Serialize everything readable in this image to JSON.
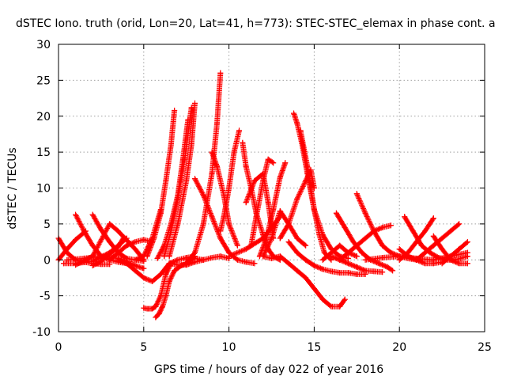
{
  "chart_data": {
    "type": "scatter",
    "title": "dSTEC Iono. truth (orid, Lon=20, Lat=41, h=773): STEC-STEC_elemax in phase cont. a",
    "xlabel": "GPS time / hours of day 022 of year 2016",
    "ylabel": "dSTEC  / TECUs",
    "xlim": [
      0,
      25
    ],
    "ylim": [
      -10,
      30
    ],
    "xticks": [
      0,
      5,
      10,
      15,
      20,
      25
    ],
    "yticks": [
      -10,
      -5,
      0,
      5,
      10,
      15,
      20,
      25,
      30
    ],
    "grid": true,
    "legend": "none",
    "marker": "plus",
    "color": "#ff0000",
    "series": [
      {
        "x": [
          0.0,
          0.5,
          1.0,
          1.5,
          2.0,
          2.5,
          3.0
        ],
        "y": [
          3.0,
          1.0,
          0.0,
          -0.3,
          -0.5,
          -0.6,
          -0.6
        ]
      },
      {
        "x": [
          0.0,
          0.5,
          1.0,
          1.6
        ],
        "y": [
          0.0,
          1.5,
          2.8,
          4.0
        ]
      },
      {
        "x": [
          1.0,
          1.5,
          2.0,
          2.5,
          3.0,
          3.5,
          4.0
        ],
        "y": [
          6.3,
          4.0,
          2.0,
          0.5,
          0.0,
          -0.3,
          -0.5
        ]
      },
      {
        "x": [
          2.0,
          2.5,
          3.0,
          3.5,
          4.0,
          4.5,
          5.0
        ],
        "y": [
          6.3,
          4.2,
          2.5,
          1.0,
          0.2,
          0.0,
          -0.2
        ]
      },
      {
        "x": [
          2.0,
          2.5,
          3.0,
          3.5,
          3.8
        ],
        "y": [
          -0.8,
          -0.2,
          0.8,
          1.8,
          3.0
        ]
      },
      {
        "x": [
          3.0,
          3.5,
          4.0,
          4.5,
          5.0,
          5.5
        ],
        "y": [
          0.0,
          1.0,
          2.0,
          2.5,
          2.8,
          2.5
        ]
      },
      {
        "x": [
          0.3,
          1.0,
          2.0,
          3.0,
          3.5,
          4.0
        ],
        "y": [
          -0.5,
          -0.5,
          -0.2,
          1.0,
          2.0,
          3.0
        ]
      },
      {
        "x": [
          0.5,
          1.5,
          2.5,
          3.5,
          4.0,
          4.5,
          5.0
        ],
        "y": [
          0.0,
          0.2,
          0.5,
          0.2,
          -0.3,
          -0.8,
          -1.2
        ]
      },
      {
        "x": [
          1.0,
          2.0,
          3.0,
          3.5,
          4.5,
          5.0
        ],
        "y": [
          -0.7,
          0.5,
          5.0,
          4.0,
          1.5,
          0.0
        ]
      },
      {
        "x": [
          3.5,
          4.0,
          4.5,
          5.0,
          5.5,
          6.0,
          6.5,
          7.0,
          7.5,
          8.0
        ],
        "y": [
          0.0,
          -0.5,
          -1.5,
          -2.5,
          -3.0,
          -2.0,
          -0.5,
          0.0,
          0.3,
          0.5
        ]
      },
      {
        "x": [
          4.5,
          5.0,
          5.3,
          5.5,
          6.0
        ],
        "y": [
          0.0,
          0.5,
          2.0,
          3.0,
          7.0
        ]
      },
      {
        "x": [
          5.0,
          5.2,
          5.5,
          5.7,
          6.0,
          6.3,
          6.6
        ],
        "y": [
          -6.7,
          -6.8,
          -6.8,
          -6.5,
          -5.0,
          -2.0,
          -0.5
        ]
      },
      {
        "x": [
          5.7,
          5.9,
          6.1,
          6.3,
          6.5,
          6.8,
          7.2,
          7.5,
          8.0
        ],
        "y": [
          -8.0,
          -7.5,
          -6.5,
          -5.0,
          -3.0,
          -1.5,
          -0.8,
          -0.5,
          0.5
        ]
      },
      {
        "x": [
          5.2,
          5.6,
          6.0,
          6.3,
          6.6,
          6.8
        ],
        "y": [
          0.5,
          3.0,
          6.5,
          11.0,
          16.0,
          20.8
        ]
      },
      {
        "x": [
          5.8,
          6.2,
          6.6,
          7.0,
          7.3,
          7.6
        ],
        "y": [
          0.2,
          2.0,
          5.0,
          9.0,
          14.0,
          19.5
        ]
      },
      {
        "x": [
          6.2,
          6.6,
          7.0,
          7.4,
          7.8
        ],
        "y": [
          0.5,
          4.0,
          8.5,
          14.0,
          21.2
        ]
      },
      {
        "x": [
          6.5,
          7.0,
          7.5,
          7.8,
          8.0
        ],
        "y": [
          0.5,
          5.0,
          11.0,
          16.0,
          21.8
        ]
      },
      {
        "x": [
          7.5,
          8.0,
          8.5,
          9.0,
          9.3,
          9.5
        ],
        "y": [
          -0.5,
          1.0,
          5.0,
          12.0,
          19.0,
          26.0
        ]
      },
      {
        "x": [
          6.5,
          7.0,
          7.5,
          8.0,
          8.5
        ],
        "y": [
          -0.5,
          -0.7,
          -0.7,
          -0.3,
          0.0
        ]
      },
      {
        "x": [
          8.0,
          8.5,
          9.0,
          9.5,
          10.0,
          10.5,
          11.0,
          11.5
        ],
        "y": [
          11.3,
          9.0,
          6.0,
          3.0,
          1.0,
          0.0,
          -0.3,
          -0.5
        ]
      },
      {
        "x": [
          7.5,
          8.0,
          8.5,
          9.0,
          9.5,
          10.0
        ],
        "y": [
          0.0,
          0.2,
          0.0,
          0.3,
          0.5,
          0.2
        ]
      },
      {
        "x": [
          9.0,
          9.3,
          9.7,
          10.0,
          10.5
        ],
        "y": [
          15.0,
          13.0,
          9.0,
          5.0,
          2.0
        ]
      },
      {
        "x": [
          9.5,
          9.7,
          10.0,
          10.3,
          10.6
        ],
        "y": [
          4.0,
          6.0,
          10.0,
          15.0,
          18.0
        ]
      },
      {
        "x": [
          10.8,
          11.0,
          11.3,
          11.6,
          12.0,
          12.3,
          12.6,
          13.0
        ],
        "y": [
          16.3,
          13.0,
          10.0,
          6.5,
          3.5,
          1.5,
          0.5,
          0.0
        ]
      },
      {
        "x": [
          11.3,
          11.6,
          12.0,
          12.3,
          12.6
        ],
        "y": [
          2.0,
          6.0,
          11.0,
          14.0,
          13.5
        ]
      },
      {
        "x": [
          11.0,
          11.5,
          12.0,
          12.3,
          12.6
        ],
        "y": [
          8.0,
          11.0,
          12.0,
          8.0,
          3.0
        ]
      },
      {
        "x": [
          11.8,
          12.2,
          12.6,
          13.0,
          13.3
        ],
        "y": [
          0.5,
          3.0,
          7.0,
          11.5,
          13.5
        ]
      },
      {
        "x": [
          12.0,
          12.5,
          13.0,
          13.5,
          14.0,
          14.5
        ],
        "y": [
          0.5,
          3.0,
          6.8,
          5.0,
          3.0,
          2.0
        ]
      },
      {
        "x": [
          10.0,
          11.0,
          12.0,
          12.5,
          13.0
        ],
        "y": [
          0.5,
          1.5,
          3.0,
          4.5,
          6.0
        ]
      },
      {
        "x": [
          12.0,
          12.5,
          13.0,
          13.5,
          14.0,
          14.5,
          15.0,
          15.5,
          16.0,
          16.5,
          16.8
        ],
        "y": [
          0.5,
          0.2,
          0.5,
          -0.5,
          -1.5,
          -2.5,
          -4.0,
          -5.5,
          -6.5,
          -6.5,
          -5.5
        ]
      },
      {
        "x": [
          13.0,
          13.5,
          14.0,
          14.5,
          14.8,
          15.0
        ],
        "y": [
          3.0,
          5.0,
          8.5,
          11.0,
          12.5,
          10.0
        ]
      },
      {
        "x": [
          13.8,
          14.0,
          14.3,
          14.6,
          15.0,
          15.3,
          15.6,
          16.0
        ],
        "y": [
          20.4,
          19.0,
          16.0,
          12.0,
          7.0,
          3.5,
          1.0,
          0.0
        ]
      },
      {
        "x": [
          14.2,
          14.6,
          15.0,
          15.5,
          16.0,
          16.5,
          17.0
        ],
        "y": [
          18.0,
          13.0,
          7.0,
          3.5,
          1.5,
          0.5,
          0.2
        ]
      },
      {
        "x": [
          13.5,
          14.0,
          14.5,
          15.0,
          15.5,
          16.0,
          16.5,
          17.0,
          17.5,
          18.0
        ],
        "y": [
          2.5,
          1.0,
          0.0,
          -0.8,
          -1.3,
          -1.6,
          -1.8,
          -1.8,
          -2.0,
          -2.0
        ]
      },
      {
        "x": [
          16.3,
          16.8,
          17.3,
          17.8,
          18.3,
          18.8,
          19.3,
          19.6
        ],
        "y": [
          6.5,
          4.5,
          2.5,
          1.0,
          0.0,
          -0.5,
          -1.0,
          -1.5
        ]
      },
      {
        "x": [
          16.5,
          17.0,
          17.5,
          18.0,
          18.5,
          19.0,
          19.5
        ],
        "y": [
          0.0,
          1.0,
          2.0,
          3.0,
          4.0,
          4.5,
          4.8
        ]
      },
      {
        "x": [
          16.0,
          16.5,
          17.0,
          17.5,
          18.0,
          18.5,
          19.0
        ],
        "y": [
          0.5,
          0.0,
          -0.5,
          -1.0,
          -1.5,
          -1.6,
          -1.7
        ]
      },
      {
        "x": [
          17.5,
          18.0,
          18.5,
          19.0,
          19.5,
          20.0,
          20.5,
          21.0
        ],
        "y": [
          9.2,
          6.5,
          4.0,
          2.0,
          1.0,
          0.5,
          0.2,
          0.0
        ]
      },
      {
        "x": [
          15.5,
          16.0,
          16.5,
          17.0,
          17.5
        ],
        "y": [
          0.0,
          1.0,
          2.0,
          1.0,
          0.5
        ]
      },
      {
        "x": [
          20.3,
          20.8,
          21.3,
          21.8,
          22.3,
          22.8,
          23.3,
          24.0
        ],
        "y": [
          6.0,
          4.0,
          2.0,
          1.0,
          0.3,
          0.0,
          0.0,
          0.5
        ]
      },
      {
        "x": [
          20.0,
          20.5,
          21.0,
          21.5,
          22.0
        ],
        "y": [
          0.0,
          1.0,
          2.5,
          4.0,
          5.8
        ]
      },
      {
        "x": [
          21.0,
          21.5,
          22.0,
          22.5,
          23.0,
          23.5
        ],
        "y": [
          0.0,
          1.0,
          2.0,
          3.0,
          4.0,
          5.0
        ]
      },
      {
        "x": [
          22.0,
          22.5,
          23.0,
          23.5,
          24.0
        ],
        "y": [
          3.3,
          1.5,
          0.0,
          -0.5,
          -0.5
        ]
      },
      {
        "x": [
          20.0,
          20.5,
          21.0,
          21.5,
          22.0,
          22.5
        ],
        "y": [
          1.5,
          0.5,
          0.0,
          -0.5,
          -0.5,
          -0.3
        ]
      },
      {
        "x": [
          22.5,
          23.0,
          23.5,
          24.0
        ],
        "y": [
          -0.5,
          0.5,
          1.5,
          2.5
        ]
      },
      {
        "x": [
          18.0,
          19.0,
          20.0,
          21.0,
          22.0,
          23.0,
          24.0
        ],
        "y": [
          0.0,
          0.3,
          0.5,
          0.2,
          0.0,
          0.5,
          1.0
        ]
      }
    ]
  }
}
